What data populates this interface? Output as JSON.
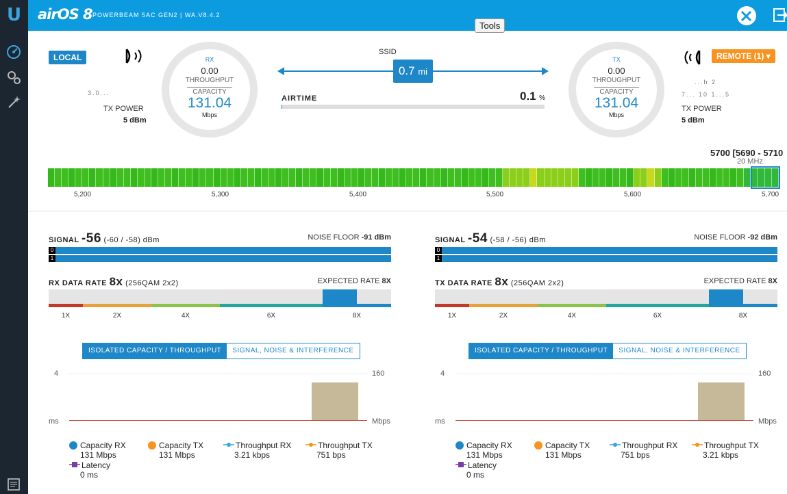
{
  "app": {
    "brand": "airOS 8",
    "device": "POWERBEAM 5AC GEN2 | WA.V8.4.2",
    "tooltip": "Tools"
  },
  "local": {
    "badge": "LOCAL",
    "name_partial": "3.0...",
    "tx_power_label": "TX POWER",
    "tx_power_value": "5 dBm"
  },
  "remote": {
    "badge": "REMOTE (1) ▾",
    "name_partial": "...h 2",
    "ip_partial": "7... 10 1...5",
    "tx_power_label": "TX POWER",
    "tx_power_value": "5 dBm"
  },
  "rx_gauge": {
    "title": "RX",
    "throughput_value": "0.00",
    "throughput_label": "THROUGHPUT",
    "capacity_label": "CAPACITY",
    "capacity_value": "131.04",
    "unit": "Mbps"
  },
  "tx_gauge": {
    "title": "TX",
    "throughput_value": "0.00",
    "throughput_label": "THROUGHPUT",
    "capacity_label": "CAPACITY",
    "capacity_value": "131.04",
    "unit": "Mbps"
  },
  "link": {
    "ssid_label": "SSID",
    "distance_value": "0.7",
    "distance_unit": "mi",
    "airtime_label": "AIRTIME",
    "airtime_value": "0.1",
    "airtime_unit": "%",
    "airtime_fraction": 0.001
  },
  "spectrum": {
    "frequency_title": "5700 [5690 - 5710",
    "bandwidth": "20 MHz",
    "ticks": [
      "5,200",
      "5,300",
      "5,400",
      "5,500",
      "5,600",
      "5,700"
    ]
  },
  "panels": [
    {
      "signal_label": "SIGNAL",
      "signal_value": "-56",
      "signal_chains": "(-60 / -58) dBm",
      "noise_label": "NOISE FLOOR",
      "noise_value": "-91 dBm",
      "chain0": "0",
      "chain1": "1",
      "rate_label": "RX DATA RATE",
      "rate_value": "8x",
      "rate_detail": "(256QAM 2x2)",
      "expected_label": "EXPECTED RATE",
      "expected_value": "8X",
      "ticks": [
        "1X",
        "2X",
        "4X",
        "6X",
        "8X"
      ],
      "tab_active": "ISOLATED CAPACITY / THROUGHPUT",
      "tab_inactive": "SIGNAL, NOISE & INTERFERENCE",
      "axis_left_top": "4",
      "axis_left_unit": "ms",
      "axis_right_top": "160",
      "axis_right_unit": "Mbps",
      "legend": [
        {
          "label": "Capacity RX",
          "value": "131 Mbps",
          "color": "#1e87c8",
          "kind": "dot"
        },
        {
          "label": "Capacity TX",
          "value": "131 Mbps",
          "color": "#f7931e",
          "kind": "dot"
        },
        {
          "label": "Throughput RX",
          "value": "3.21 kbps",
          "color": "#3ba3e0",
          "kind": "line"
        },
        {
          "label": "Throughput TX",
          "value": "751 bps",
          "color": "#f7931e",
          "kind": "line"
        },
        {
          "label": "Latency",
          "value": "0 ms",
          "color": "#7a3f9e",
          "kind": "square"
        }
      ]
    },
    {
      "signal_label": "SIGNAL",
      "signal_value": "-54",
      "signal_chains": "(-58 / -56) dBm",
      "noise_label": "NOISE FLOOR",
      "noise_value": "-92 dBm",
      "chain0": "0",
      "chain1": "1",
      "rate_label": "TX DATA RATE",
      "rate_value": "8x",
      "rate_detail": "(256QAM 2x2)",
      "expected_label": "EXPECTED RATE",
      "expected_value": "8X",
      "ticks": [
        "1X",
        "2X",
        "4X",
        "6X",
        "8X"
      ],
      "tab_active": "ISOLATED CAPACITY / THROUGHPUT",
      "tab_inactive": "SIGNAL, NOISE & INTERFERENCE",
      "axis_left_top": "4",
      "axis_left_unit": "ms",
      "axis_right_top": "160",
      "axis_right_unit": "Mbps",
      "legend": [
        {
          "label": "Capacity RX",
          "value": "131 Mbps",
          "color": "#1e87c8",
          "kind": "dot"
        },
        {
          "label": "Capacity TX",
          "value": "131 Mbps",
          "color": "#f7931e",
          "kind": "dot"
        },
        {
          "label": "Throughput RX",
          "value": "751 bps",
          "color": "#3ba3e0",
          "kind": "line"
        },
        {
          "label": "Throughput TX",
          "value": "3.21 kbps",
          "color": "#f7931e",
          "kind": "line"
        },
        {
          "label": "Latency",
          "value": "0 ms",
          "color": "#7a3f9e",
          "kind": "square"
        }
      ]
    }
  ]
}
